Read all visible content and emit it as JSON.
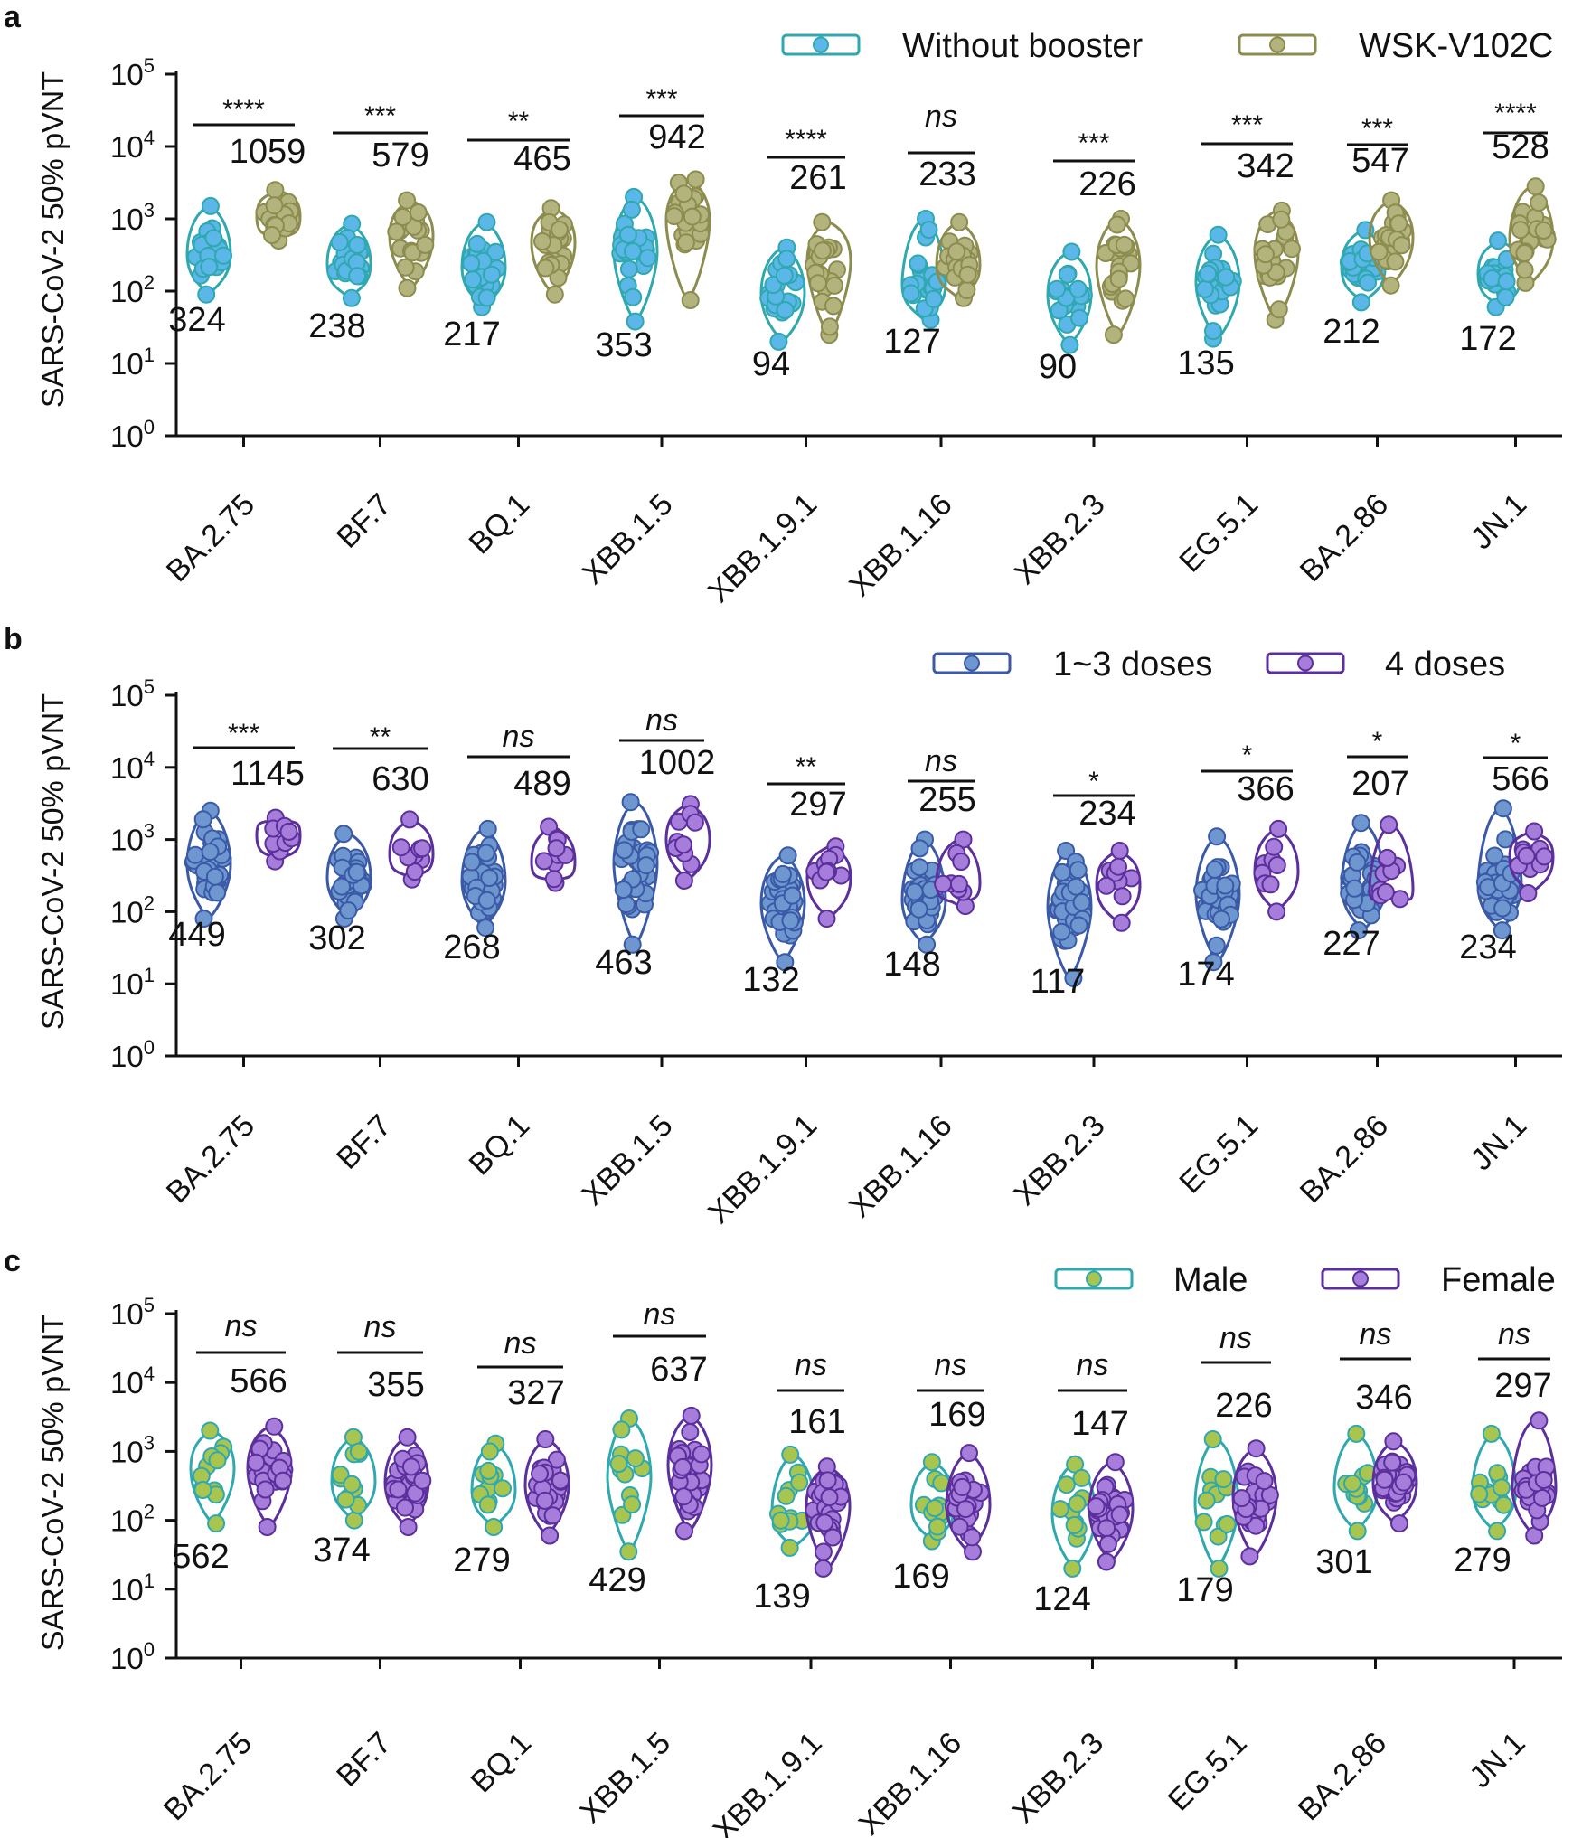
{
  "colors": {
    "teal_outline": "#2fa8b0",
    "cyan_fill": "#5ab7e8",
    "olive_outline": "#8c8c4f",
    "olive_fill": "#b3b37e",
    "blue_outline": "#3a5aa8",
    "blue_fill": "#6f97cf",
    "purple_outline": "#5b2f9c",
    "purple_fill": "#a77ddb",
    "green_fill": "#a8c64f",
    "text": "#111111"
  },
  "chart_data": [
    {
      "panel": "a",
      "type": "violin-scatter",
      "ylabel": "SARS-CoV-2 50% pVNT",
      "yscale": "log10",
      "ylim": [
        1,
        100000
      ],
      "yticks": [
        "10",
        "10",
        "10",
        "10",
        "10",
        "10"
      ],
      "ytick_exponents": [
        "0",
        "1",
        "2",
        "3",
        "4",
        "5"
      ],
      "categories": [
        "BA.2.75",
        "BF.7",
        "BQ.1",
        "XBB.1.5",
        "XBB.1.9.1",
        "XBB.1.16",
        "XBB.2.3",
        "EG.5.1",
        "BA.2.86",
        "JN.1"
      ],
      "series": [
        {
          "name": "Without booster",
          "icon": "teal-violin-cyan-dot",
          "gmt": [
            "324",
            "238",
            "217",
            "353",
            "94",
            "127",
            "90",
            "135",
            "212",
            "172"
          ],
          "gmt_values": [
            324,
            238,
            217,
            353,
            94,
            127,
            90,
            135,
            212,
            172
          ],
          "max": [
            1500,
            850,
            900,
            2000,
            400,
            1000,
            350,
            600,
            700,
            500
          ],
          "min": [
            90,
            80,
            60,
            38,
            20,
            40,
            18,
            22,
            70,
            60
          ],
          "n": 22
        },
        {
          "name": "WSK-V102C",
          "icon": "olive-violin-olive-dot",
          "gmt": [
            "1059",
            "579",
            "465",
            "942",
            "261",
            "233",
            "226",
            "342",
            "547",
            "528"
          ],
          "gmt_values": [
            1059,
            579,
            465,
            942,
            261,
            233,
            226,
            342,
            547,
            528
          ],
          "max": [
            2500,
            1800,
            1400,
            3500,
            900,
            900,
            1000,
            1300,
            1800,
            2800
          ],
          "min": [
            500,
            110,
            90,
            75,
            25,
            80,
            25,
            40,
            120,
            130
          ],
          "n": 22
        }
      ],
      "significance": [
        "****",
        "***",
        "**",
        "***",
        "****",
        "ns",
        "***",
        "***",
        "***",
        "****"
      ]
    },
    {
      "panel": "b",
      "type": "violin-scatter",
      "ylabel": "SARS-CoV-2 50% pVNT",
      "yscale": "log10",
      "ylim": [
        1,
        100000
      ],
      "yticks": [
        "10",
        "10",
        "10",
        "10",
        "10",
        "10"
      ],
      "ytick_exponents": [
        "0",
        "1",
        "2",
        "3",
        "4",
        "5"
      ],
      "categories": [
        "BA.2.75",
        "BF.7",
        "BQ.1",
        "XBB.1.5",
        "XBB.1.9.1",
        "XBB.1.16",
        "XBB.2.3",
        "EG.5.1",
        "BA.2.86",
        "JN.1"
      ],
      "series": [
        {
          "name": "1~3 doses",
          "icon": "blue-violin-blue-dot",
          "gmt": [
            "449",
            "302",
            "268",
            "463",
            "132",
            "148",
            "117",
            "174",
            "227",
            "234"
          ],
          "gmt_values": [
            449,
            302,
            268,
            463,
            132,
            148,
            117,
            174,
            227,
            234
          ],
          "max": [
            2500,
            1200,
            1400,
            3300,
            600,
            1000,
            700,
            1100,
            1700,
            2700
          ],
          "min": [
            80,
            80,
            60,
            35,
            20,
            35,
            12,
            20,
            55,
            55
          ],
          "n": 34
        },
        {
          "name": "4 doses",
          "icon": "purple-violin-purple-dot",
          "gmt": [
            "1145",
            "630",
            "489",
            "1002",
            "297",
            "255",
            "234",
            "366",
            "207",
            "566"
          ],
          "gmt_values": [
            1145,
            630,
            489,
            1002,
            297,
            255,
            234,
            366,
            207,
            566
          ],
          "max": [
            2000,
            1900,
            1500,
            3100,
            800,
            1000,
            700,
            1400,
            1600,
            1300
          ],
          "min": [
            500,
            280,
            250,
            270,
            80,
            120,
            70,
            100,
            150,
            180
          ],
          "n": 10
        }
      ],
      "significance": [
        "***",
        "**",
        "ns",
        "ns",
        "**",
        "ns",
        "*",
        "*",
        "*",
        "*"
      ]
    },
    {
      "panel": "c",
      "type": "violin-scatter",
      "ylabel": "SARS-CoV-2 50% pVNT",
      "yscale": "log10",
      "ylim": [
        1,
        100000
      ],
      "yticks": [
        "10",
        "10",
        "10",
        "10",
        "10",
        "10"
      ],
      "ytick_exponents": [
        "0",
        "1",
        "2",
        "3",
        "4",
        "5"
      ],
      "categories": [
        "BA.2.75",
        "BF.7",
        "BQ.1",
        "XBB.1.5",
        "XBB.1.9.1",
        "XBB.1.16",
        "XBB.2.3",
        "EG.5.1",
        "BA.2.86",
        "JN.1"
      ],
      "series": [
        {
          "name": "Male",
          "icon": "teal-violin-green-dot",
          "gmt": [
            "562",
            "374",
            "279",
            "429",
            "139",
            "169",
            "124",
            "179",
            "301",
            "279"
          ],
          "gmt_values": [
            562,
            374,
            279,
            429,
            139,
            169,
            124,
            179,
            301,
            279
          ],
          "max": [
            2000,
            1600,
            1300,
            3000,
            900,
            700,
            650,
            1500,
            1800,
            1800
          ],
          "min": [
            90,
            100,
            80,
            35,
            40,
            50,
            20,
            20,
            70,
            70
          ],
          "n": 12
        },
        {
          "name": "Female",
          "icon": "purple-violin-purple-dot",
          "gmt": [
            "566",
            "355",
            "327",
            "637",
            "161",
            "169",
            "147",
            "226",
            "346",
            "297"
          ],
          "gmt_values": [
            566,
            355,
            327,
            637,
            161,
            169,
            147,
            226,
            346,
            297
          ],
          "max": [
            2300,
            1600,
            1500,
            3300,
            600,
            950,
            700,
            1100,
            1400,
            2800
          ],
          "min": [
            80,
            80,
            60,
            70,
            20,
            35,
            25,
            30,
            90,
            60
          ],
          "n": 28
        }
      ],
      "significance": [
        "ns",
        "ns",
        "ns",
        "ns",
        "ns",
        "ns",
        "ns",
        "ns",
        "ns",
        "ns"
      ]
    }
  ]
}
